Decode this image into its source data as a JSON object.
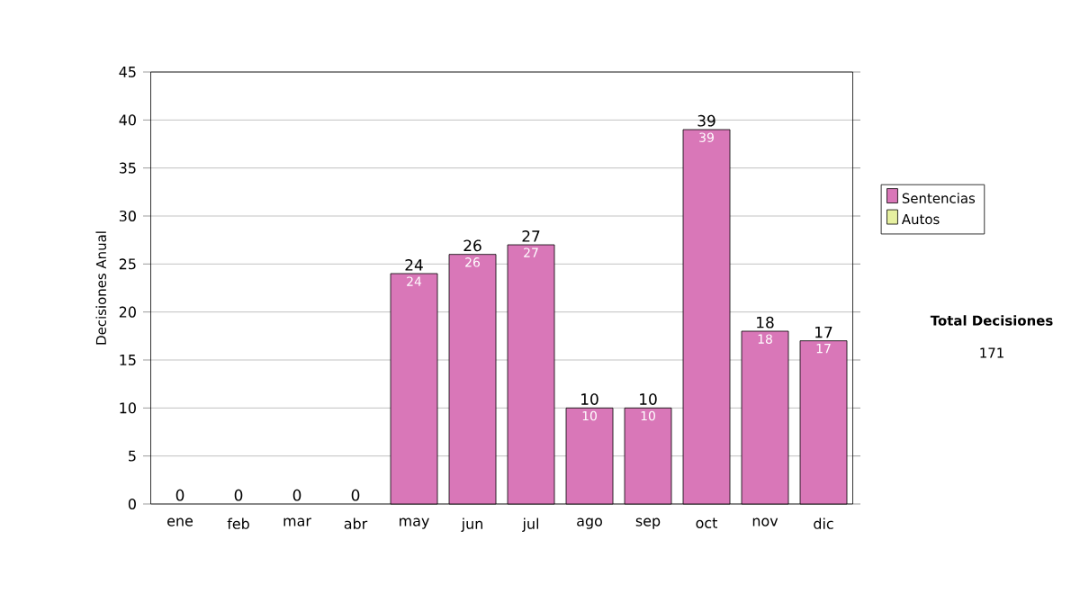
{
  "chart_data": {
    "type": "bar",
    "stacked": true,
    "ylabel": "Decisiones Anual",
    "categories": [
      "ene",
      "feb",
      "mar",
      "abr",
      "may",
      "jun",
      "jul",
      "ago",
      "sep",
      "oct",
      "nov",
      "dic"
    ],
    "series": [
      {
        "name": "Sentencias",
        "color": "#d977b8",
        "values": [
          0,
          0,
          0,
          0,
          24,
          26,
          27,
          10,
          10,
          39,
          18,
          17
        ],
        "value_labels": [
          null,
          null,
          null,
          null,
          "24",
          "26",
          "27",
          "10",
          "10",
          "39",
          "18",
          "17"
        ]
      },
      {
        "name": "Autos",
        "color": "#e6f0a0",
        "values": [
          0,
          0,
          0,
          0,
          0,
          0,
          0,
          0,
          0,
          0,
          0,
          0
        ]
      }
    ],
    "totals": [
      "0",
      "0",
      "0",
      "0",
      "24",
      "26",
      "27",
      "10",
      "10",
      "39",
      "18",
      "17"
    ],
    "ylim": [
      0,
      45
    ],
    "yticks": [
      0,
      5,
      10,
      15,
      20,
      25,
      30,
      35,
      40,
      45
    ],
    "grid": "y",
    "legend": "right",
    "annotations": [
      "Total Decisiones",
      "171"
    ]
  }
}
